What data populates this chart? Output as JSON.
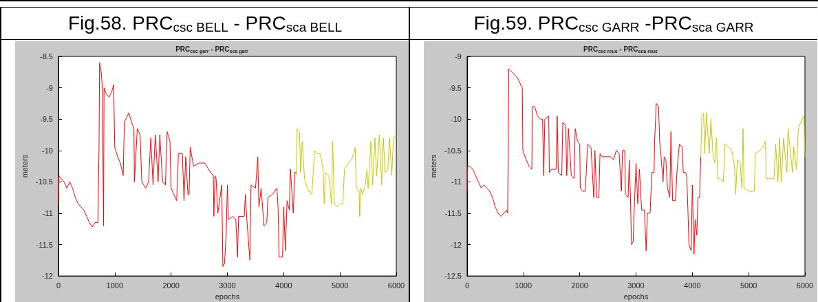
{
  "chart_data": [
    {
      "type": "line",
      "title": "Fig.58. PRC$_{csc BELL}$ - PRC$_{sca BELL}$",
      "subtitle": "PRC$_{csc garr}$ - PRC$_{sca garr}$",
      "xlabel": "epochs",
      "ylabel": "meters",
      "xlim": [
        0,
        6000
      ],
      "ylim": [
        -12,
        -8.5
      ],
      "xticks": [
        0,
        1000,
        2000,
        3000,
        4000,
        5000,
        6000
      ],
      "yticks": [
        -12,
        -11.5,
        -11,
        -10.5,
        -10,
        -9.5,
        -9,
        -8.5
      ],
      "series": [
        {
          "color": "#ff0000",
          "x": [
            0,
            10,
            50,
            100,
            150,
            200,
            250,
            300,
            350,
            400,
            450,
            500,
            550,
            600,
            650,
            700,
            720,
            730,
            760,
            780,
            800,
            810,
            850,
            900,
            950,
            980,
            1000,
            1050,
            1100,
            1150,
            1170,
            1250,
            1300,
            1340,
            1350,
            1400,
            1450,
            1480,
            1550,
            1600,
            1640,
            1680,
            1720,
            1770,
            1800,
            1850,
            1900,
            1930,
            1980,
            2000,
            2050,
            2100,
            2130,
            2200,
            2230,
            2260,
            2300,
            2320,
            2340,
            2400,
            2500,
            2600,
            2700,
            2750,
            2760,
            2780,
            2800,
            2830,
            2900,
            2920,
            2950,
            2980,
            3000,
            3020,
            3100,
            3150,
            3180,
            3200,
            3300,
            3320,
            3350,
            3400,
            3420,
            3500,
            3540,
            3560,
            3600,
            3650,
            3700,
            3720,
            3800,
            3880,
            3900,
            3920,
            3980,
            4000,
            4030,
            4060,
            4100,
            4120,
            4170,
            4200,
            4230
          ],
          "values": [
            -10.85,
            -10.4,
            -10.45,
            -10.5,
            -10.6,
            -10.5,
            -10.6,
            -10.75,
            -10.85,
            -10.9,
            -10.95,
            -11.05,
            -11.15,
            -11.22,
            -11.15,
            -11.15,
            -10.0,
            -8.6,
            -8.75,
            -9.0,
            -11.2,
            -9.0,
            -9.1,
            -9.15,
            -9.05,
            -8.95,
            -9.95,
            -10.1,
            -10.2,
            -10.4,
            -9.55,
            -9.4,
            -9.55,
            -9.65,
            -10.5,
            -9.65,
            -9.75,
            -10.5,
            -10.6,
            -10.5,
            -9.8,
            -10.55,
            -9.75,
            -10.5,
            -9.75,
            -10.5,
            -10.55,
            -9.7,
            -9.85,
            -10.6,
            -10.7,
            -10.8,
            -10.05,
            -10.05,
            -10.8,
            -10.1,
            -10.7,
            -10.7,
            -9.95,
            -10.25,
            -10.2,
            -10.2,
            -10.35,
            -10.4,
            -11.05,
            -10.4,
            -10.45,
            -11.0,
            -10.55,
            -11.85,
            -11.8,
            -11.3,
            -10.55,
            -11.1,
            -11.05,
            -11.1,
            -11.7,
            -11.05,
            -11.05,
            -10.7,
            -11.15,
            -11.75,
            -10.55,
            -10.6,
            -10.1,
            -10.9,
            -10.6,
            -11.2,
            -11.15,
            -10.75,
            -10.7,
            -10.6,
            -10.9,
            -11.7,
            -11.7,
            -10.9,
            -11.6,
            -10.8,
            -10.95,
            -10.3,
            -11.0,
            -10.35,
            -10.35
          ]
        },
        {
          "color": "#c8c800",
          "x": [
            4230,
            4240,
            4280,
            4300,
            4330,
            4370,
            4400,
            4450,
            4500,
            4550,
            4600,
            4650,
            4700,
            4720,
            4740,
            4800,
            4850,
            4870,
            4900,
            4950,
            5000,
            5050,
            5080,
            5150,
            5200,
            5250,
            5270,
            5290,
            5340,
            5350,
            5370,
            5400,
            5450,
            5480,
            5500,
            5550,
            5580,
            5620,
            5650,
            5700,
            5740,
            5770,
            5800,
            5850,
            5880,
            5920,
            5950,
            6000
          ],
          "values": [
            -10.4,
            -9.65,
            -9.7,
            -10.35,
            -9.85,
            -10.45,
            -10.55,
            -10.65,
            -10.7,
            -10.0,
            -10.05,
            -10.05,
            -10.3,
            -10.85,
            -10.35,
            -10.4,
            -10.85,
            -9.85,
            -10.85,
            -10.9,
            -10.85,
            -10.85,
            -10.3,
            -10.2,
            -10.15,
            -10.05,
            -9.95,
            -10.6,
            -10.65,
            -11.05,
            -10.6,
            -10.7,
            -10.55,
            -10.3,
            -10.6,
            -9.85,
            -10.55,
            -9.8,
            -10.4,
            -9.75,
            -10.55,
            -9.8,
            -10.35,
            -10.3,
            -9.8,
            -10.4,
            -9.8,
            -9.75
          ]
        }
      ]
    },
    {
      "type": "line",
      "title": "Fig.59. PRC$_{csc GARR}$ -PRC$_{sca GARR}$",
      "subtitle": "PRC$_{csc reus}$ - PRC$_{sca reus}$",
      "xlabel": "epochs",
      "ylabel": "meters",
      "xlim": [
        0,
        6000
      ],
      "ylim": [
        -12.5,
        -9
      ],
      "xticks": [
        0,
        1000,
        2000,
        3000,
        4000,
        5000,
        6000
      ],
      "yticks": [
        -12.5,
        -12,
        -11.5,
        -11,
        -10.5,
        -10,
        -9.5,
        -9
      ],
      "series": [
        {
          "color": "#ff0000",
          "x": [
            0,
            10,
            50,
            100,
            150,
            200,
            250,
            300,
            350,
            400,
            450,
            500,
            550,
            600,
            650,
            700,
            720,
            730,
            740,
            800,
            850,
            900,
            950,
            980,
            990,
            1050,
            1100,
            1150,
            1160,
            1200,
            1250,
            1300,
            1340,
            1360,
            1380,
            1450,
            1460,
            1500,
            1550,
            1580,
            1600,
            1620,
            1680,
            1700,
            1750,
            1770,
            1800,
            1850,
            1900,
            1920,
            1960,
            2000,
            2010,
            2050,
            2100,
            2140,
            2200,
            2250,
            2270,
            2300,
            2340,
            2360,
            2400,
            2500,
            2550,
            2600,
            2650,
            2700,
            2740,
            2760,
            2800,
            2810,
            2860,
            2880,
            2900,
            2920,
            2950,
            2970,
            3000,
            3030,
            3060,
            3100,
            3150,
            3180,
            3200,
            3250,
            3280,
            3320,
            3330,
            3360,
            3400,
            3420,
            3440,
            3480,
            3500,
            3530,
            3560,
            3600,
            3620,
            3650,
            3700,
            3730,
            3770,
            3820,
            3840,
            3880,
            3900,
            3920,
            3940,
            3980,
            4000,
            4030,
            4050,
            4080,
            4100,
            4130,
            4150
          ],
          "values": [
            -11.15,
            -10.75,
            -10.75,
            -10.8,
            -10.9,
            -11.0,
            -11.1,
            -11.05,
            -11.1,
            -11.15,
            -11.25,
            -11.4,
            -11.5,
            -11.55,
            -11.5,
            -11.45,
            -11.5,
            -10.4,
            -9.2,
            -9.25,
            -9.3,
            -9.35,
            -9.45,
            -9.5,
            -10.5,
            -10.65,
            -10.75,
            -10.8,
            -9.8,
            -9.8,
            -9.95,
            -10.0,
            -10.0,
            -10.9,
            -10.0,
            -9.95,
            -10.85,
            -10.8,
            -10.8,
            -10.8,
            -9.95,
            -10.85,
            -10.9,
            -10.05,
            -10.1,
            -10.9,
            -10.15,
            -10.9,
            -10.95,
            -10.15,
            -10.35,
            -10.4,
            -11.1,
            -11.15,
            -11.15,
            -10.4,
            -10.45,
            -11.25,
            -10.5,
            -11.25,
            -11.25,
            -10.55,
            -10.6,
            -10.6,
            -10.6,
            -10.65,
            -10.5,
            -10.55,
            -11.15,
            -10.5,
            -10.5,
            -11.2,
            -11.25,
            -10.65,
            -11.2,
            -12.0,
            -11.95,
            -11.4,
            -10.7,
            -11.35,
            -10.8,
            -11.45,
            -11.45,
            -12.1,
            -11.5,
            -11.5,
            -10.85,
            -10.85,
            -10.35,
            -9.75,
            -9.8,
            -10.35,
            -10.55,
            -11.0,
            -10.6,
            -10.65,
            -11.1,
            -11.25,
            -10.2,
            -11.3,
            -11.3,
            -10.8,
            -10.4,
            -10.45,
            -10.85,
            -10.85,
            -10.9,
            -11.4,
            -12.0,
            -12.1,
            -11.05,
            -12.15,
            -11.6,
            -11.85,
            -11.25,
            -11.25,
            -10.6
          ]
        },
        {
          "color": "#c8c800",
          "x": [
            4150,
            4170,
            4200,
            4220,
            4250,
            4300,
            4330,
            4370,
            4400,
            4430,
            4450,
            4500,
            4550,
            4580,
            4650,
            4700,
            4750,
            4770,
            4800,
            4850,
            4880,
            4900,
            4920,
            5000,
            5050,
            5100,
            5120,
            5200,
            5250,
            5300,
            5310,
            5350,
            5400,
            5450,
            5480,
            5520,
            5550,
            5580,
            5620,
            5680,
            5700,
            5750,
            5780,
            5800,
            5850,
            5880,
            5900,
            5950,
            5980,
            6000
          ],
          "values": [
            -10.6,
            -9.95,
            -9.9,
            -10.55,
            -9.9,
            -10.55,
            -10.0,
            -10.6,
            -10.7,
            -10.3,
            -10.95,
            -10.95,
            -11.0,
            -10.4,
            -10.45,
            -10.5,
            -10.75,
            -11.2,
            -10.65,
            -10.7,
            -11.1,
            -10.15,
            -11.1,
            -11.15,
            -11.15,
            -11.15,
            -10.55,
            -10.5,
            -10.45,
            -10.35,
            -10.95,
            -10.95,
            -10.95,
            -10.95,
            -10.4,
            -11.0,
            -10.3,
            -11.0,
            -10.3,
            -10.85,
            -10.15,
            -10.6,
            -10.85,
            -10.45,
            -10.8,
            -10.2,
            -10.1,
            -10.0,
            -9.95,
            -10.6
          ]
        }
      ]
    }
  ]
}
